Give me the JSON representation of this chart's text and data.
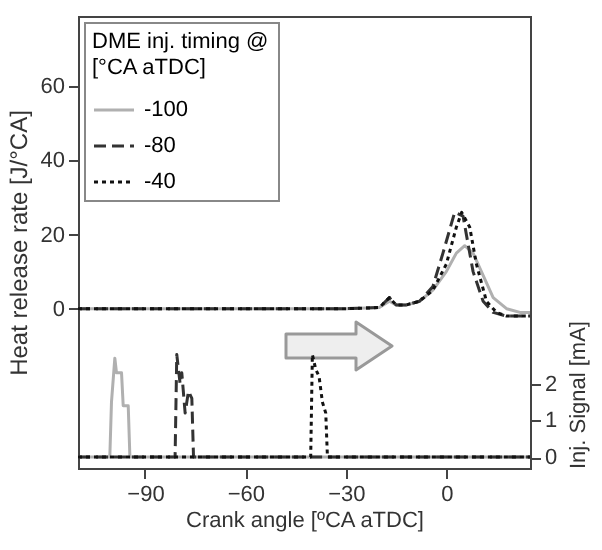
{
  "chart_data": {
    "type": "line",
    "xlabel": "Crank angle [ºCA aTDC]",
    "ylabel": "Heat release rate [J/°CA]",
    "y2label": "Inj. Signal [mA]",
    "legend_title": "DME inj. timing @\n[°CA aTDC]",
    "legend": "top left",
    "grid": false,
    "xlim": [
      -110,
      25
    ],
    "xticks": [
      -90,
      -60,
      -30,
      0
    ],
    "ylim": [
      -43,
      79
    ],
    "yticks": [
      0,
      20,
      40,
      60
    ],
    "y2lim": [
      -0.3,
      12.05
    ],
    "y2ticks": [
      0,
      1,
      2
    ],
    "series": [
      {
        "name": "-100",
        "color": "#b0b0b0",
        "line_style": "solid",
        "x": [
          -110,
          -30,
          -20,
          -17,
          -15,
          -12,
          -8,
          -4,
          0,
          3,
          5.5,
          8,
          11,
          14,
          18,
          22,
          25
        ],
        "values": [
          0,
          0,
          0.3,
          2,
          1,
          1,
          2,
          5,
          10,
          15,
          17,
          15,
          9,
          3,
          0,
          -1,
          -1
        ]
      },
      {
        "name": "-80",
        "color": "#333333",
        "line_style": "dashed",
        "x": [
          -110,
          -30,
          -20,
          -17,
          -15,
          -12,
          -8,
          -4,
          -1,
          2.5,
          5,
          8,
          11,
          14,
          18,
          22,
          25
        ],
        "values": [
          0,
          0,
          0.3,
          3,
          1,
          1,
          2,
          6,
          15,
          26,
          25,
          10,
          2,
          -1,
          -2,
          -2,
          -2
        ]
      },
      {
        "name": "-40",
        "color": "#111111",
        "line_style": "dotted",
        "x": [
          -110,
          -30,
          -20,
          -17,
          -15,
          -12,
          -8,
          -4,
          0,
          3,
          4.6,
          7,
          9,
          12,
          15,
          18,
          22,
          25
        ],
        "values": [
          0,
          0,
          0.3,
          3,
          1,
          1,
          2,
          5,
          12,
          22,
          26,
          22,
          12,
          2,
          -1,
          -2,
          -2,
          -2
        ]
      },
      {
        "color": "#b0b0b0",
        "line_style": "solid",
        "axis": "y2",
        "x": [
          -110,
          -100.5,
          -100,
          -99,
          -98.5,
          -97,
          -96.5,
          -95,
          -94.5,
          25
        ],
        "values": [
          0,
          0,
          1.5,
          2.7,
          2.3,
          2.3,
          1.4,
          1.4,
          0,
          0
        ]
      },
      {
        "color": "#333333",
        "line_style": "dashed",
        "axis": "y2",
        "x": [
          -110,
          -81,
          -80.5,
          -79.5,
          -79,
          -78,
          -77,
          -76,
          -75.5,
          -75,
          25
        ],
        "values": [
          0,
          0,
          2.8,
          2.0,
          2.3,
          1.2,
          1.8,
          1.6,
          0,
          0,
          0
        ]
      },
      {
        "color": "#111111",
        "line_style": "dotted",
        "axis": "y2",
        "x": [
          -110,
          -40.5,
          -40,
          -39,
          -38,
          -37,
          -36,
          -35.5,
          -35,
          25
        ],
        "values": [
          0,
          0,
          2.8,
          2.4,
          2.2,
          1.5,
          1.2,
          0,
          0,
          0
        ]
      }
    ]
  }
}
